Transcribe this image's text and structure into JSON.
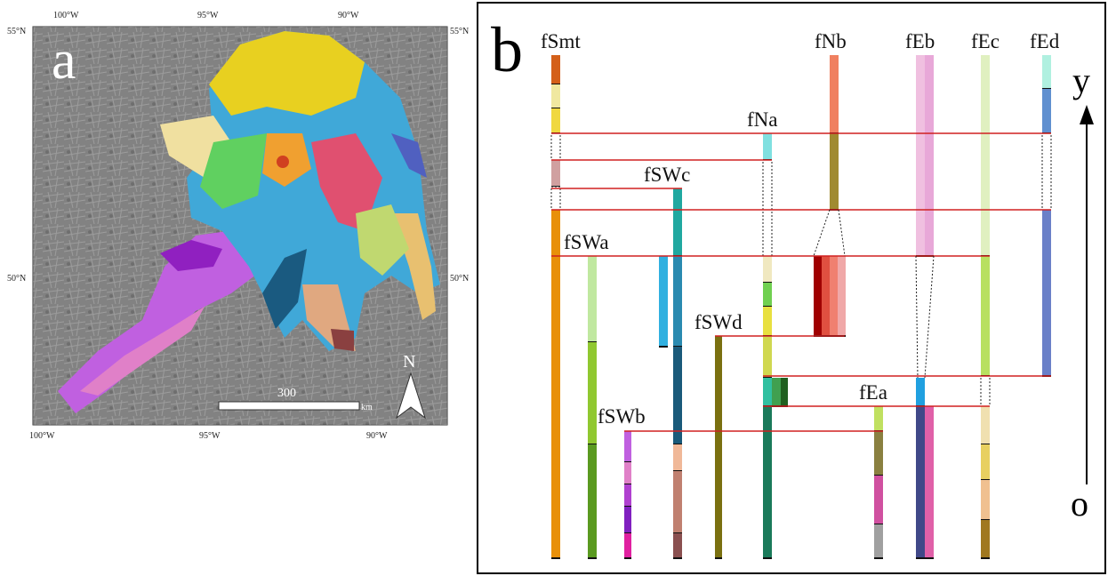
{
  "panel_a": {
    "label": "a",
    "lon_top": [
      "100°W",
      "95°W",
      "90°W"
    ],
    "lon_bottom": [
      "100°W",
      "95°W",
      "90°W"
    ],
    "lat_left": [
      "55°N",
      "50°N"
    ],
    "lat_right": [
      "55°N",
      "50°N"
    ],
    "scale_value": "300",
    "scale_unit": "km",
    "north": "N"
  },
  "panel_b": {
    "label": "b",
    "columns": [
      "fSmt",
      "fNb",
      "fEb",
      "fEc",
      "fEd",
      "fNa",
      "fSWc",
      "fSWa",
      "fSWd",
      "fSWb",
      "fEa"
    ],
    "axis_top": "y",
    "axis_bottom": "o"
  }
}
